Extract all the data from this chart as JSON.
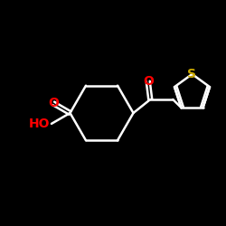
{
  "background": "#000000",
  "bond_color": "#ffffff",
  "bond_width": 1.8,
  "atom_colors": {
    "O": "#ff0000",
    "S": "#ccaa00",
    "HO": "#ff0000"
  },
  "figsize": [
    2.5,
    2.5
  ],
  "dpi": 100
}
